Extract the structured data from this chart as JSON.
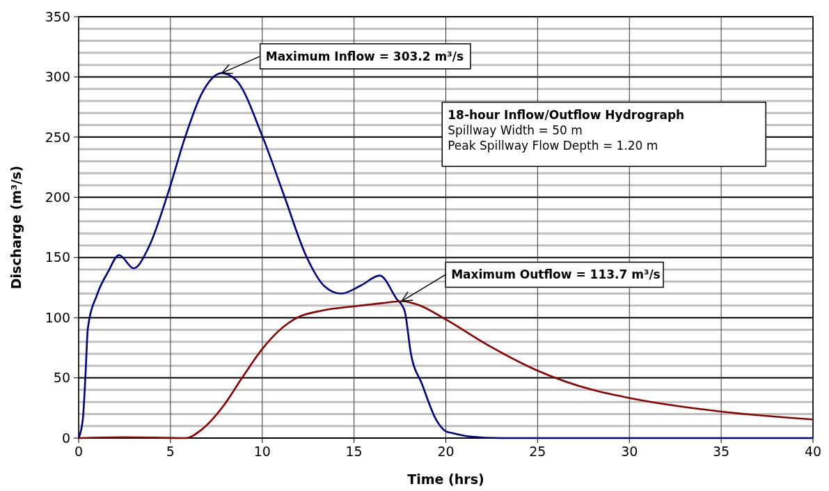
{
  "chart_data": {
    "type": "line",
    "xlabel": "Time (hrs)",
    "ylabel": "Discharge (m³/s)",
    "xlim": [
      0,
      40
    ],
    "xticks": [
      0,
      5,
      10,
      15,
      20,
      25,
      30,
      35,
      40
    ],
    "ylim": [
      0,
      350
    ],
    "yticks": [
      0,
      {
        "value": 10,
        "label": null
      },
      {
        "value": 20,
        "label": null
      },
      {
        "value": 30,
        "label": null
      },
      {
        "value": 40,
        "label": null
      },
      50,
      {
        "value": 60,
        "label": null
      },
      {
        "value": 70,
        "label": null
      },
      {
        "value": 80,
        "label": null
      },
      {
        "value": 90,
        "label": null
      },
      100,
      {
        "value": 110,
        "label": null
      },
      {
        "value": 120,
        "label": null
      },
      {
        "value": 130,
        "label": null
      },
      {
        "value": 140,
        "label": null
      },
      150,
      {
        "value": 160,
        "label": null
      },
      {
        "value": 170,
        "label": null
      },
      {
        "value": 180,
        "label": null
      },
      {
        "value": 190,
        "label": null
      },
      200,
      {
        "value": 210,
        "label": null
      },
      {
        "value": 220,
        "label": null
      },
      {
        "value": 230,
        "label": null
      },
      {
        "value": 240,
        "label": null
      },
      250,
      {
        "value": 260,
        "label": null
      },
      {
        "value": 270,
        "label": null
      },
      {
        "value": 280,
        "label": null
      },
      {
        "value": 290,
        "label": null
      },
      300,
      {
        "value": 310,
        "label": null
      },
      {
        "value": 320,
        "label": null
      },
      {
        "value": 330,
        "label": null
      },
      {
        "value": 340,
        "label": null
      },
      350
    ],
    "grid": true,
    "marker": "none",
    "line_style": "solid",
    "series": [
      {
        "color": "#000080",
        "x": [
          0,
          0.23,
          0.38,
          0.5,
          1,
          1.6,
          2.2,
          3,
          3.8,
          4.9,
          5.8,
          6.7,
          7.8,
          8.6,
          10,
          11.2,
          12.4,
          13.4,
          14.3,
          15.4,
          16.4,
          17.3,
          17.75,
          18.1,
          18.7,
          19.5,
          20,
          20.3,
          21.3,
          23,
          30,
          40
        ],
        "values": [
          0,
          16,
          55,
          91,
          119,
          138,
          152,
          141,
          158,
          205,
          250,
          286,
          303.2,
          297,
          251,
          201,
          151,
          126,
          120,
          127,
          135,
          116,
          106,
          70,
          45,
          14.5,
          5.6,
          4.3,
          1.3,
          0,
          0,
          0
        ]
      },
      {
        "color": "#8b0000",
        "x": [
          0,
          2.5,
          5.8,
          6.7,
          7.9,
          8.9,
          10,
          10.9,
          11.9,
          13.3,
          15.1,
          16.5,
          17.6,
          18.5,
          20,
          22.2,
          25,
          28,
          30,
          35,
          40
        ],
        "values": [
          0,
          0.7,
          0,
          7,
          27,
          50,
          74,
          89,
          100,
          106,
          109.6,
          112,
          113.7,
          110.7,
          98.5,
          78,
          56,
          40,
          33.3,
          22,
          15.5
        ]
      }
    ],
    "annotations": [
      {
        "text": "Maximum Inflow = 303.2 m³/s",
        "x": 7.8,
        "y": 303.2
      },
      {
        "text": "Maximum Outflow = 113.7 m³/s",
        "x": 17.6,
        "y": 113.7
      },
      "18-hour Inflow/Outflow Hydrograph",
      "Spillway Width = 50 m",
      "Peak Spillway Flow Depth = 1.20 m"
    ]
  }
}
